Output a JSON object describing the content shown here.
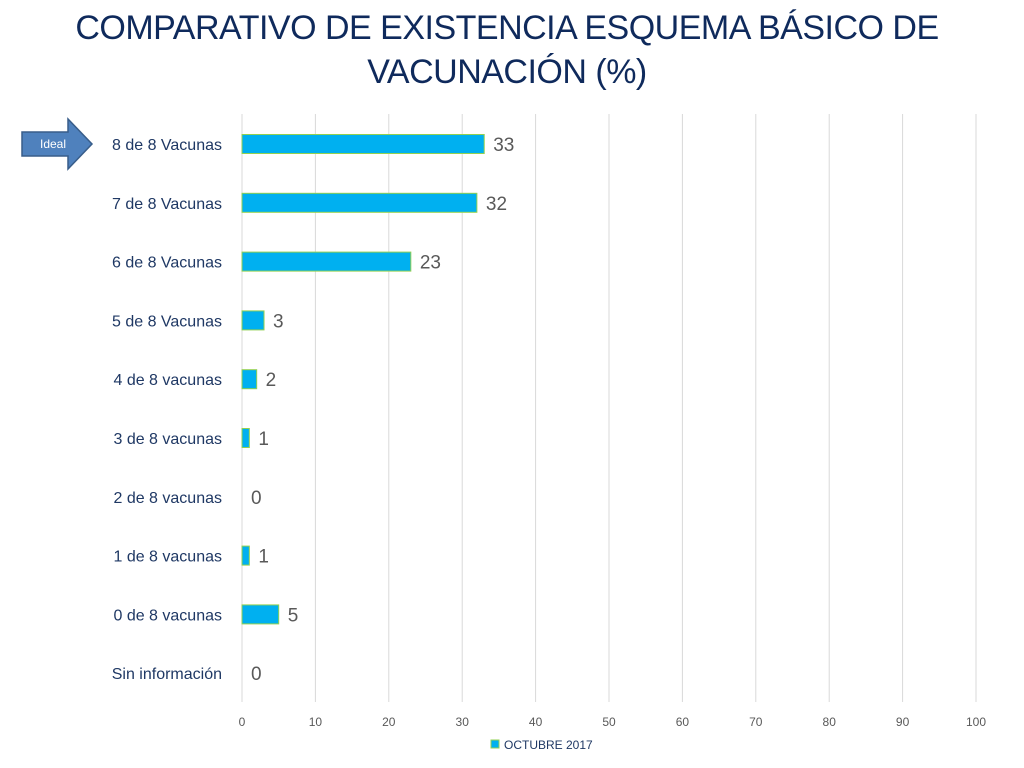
{
  "chart_data": {
    "type": "bar",
    "orientation": "horizontal",
    "title": "COMPARATIVO DE EXISTENCIA ESQUEMA BÁSICO DE VACUNACIÓN (%)",
    "title_lines": [
      "COMPARATIVO DE EXISTENCIA ESQUEMA BÁSICO DE",
      "VACUNACIÓN (%)"
    ],
    "categories": [
      "8 de 8 Vacunas",
      "7 de 8 Vacunas",
      "6 de 8 Vacunas",
      "5 de 8 Vacunas",
      "4 de 8  vacunas",
      "3 de 8  vacunas",
      "2 de 8 vacunas",
      "1 de 8  vacunas",
      "0 de 8 vacunas",
      "Sin información"
    ],
    "series": [
      {
        "name": "OCTUBRE 2017",
        "values": [
          33,
          32,
          23,
          3,
          2,
          1,
          0,
          1,
          5,
          0
        ],
        "color": "#00b0f0",
        "border_color": "#92d050"
      }
    ],
    "xlim": [
      0,
      100
    ],
    "xticks": [
      0,
      10,
      20,
      30,
      40,
      50,
      60,
      70,
      80,
      90,
      100
    ],
    "grid": true,
    "gridline_color": "#d9d9d9",
    "legend_position": "bottom",
    "annotation": {
      "text": "Ideal",
      "shape": "right-arrow",
      "target_category": "8 de 8 Vacunas",
      "color": "#4f81bd"
    }
  }
}
